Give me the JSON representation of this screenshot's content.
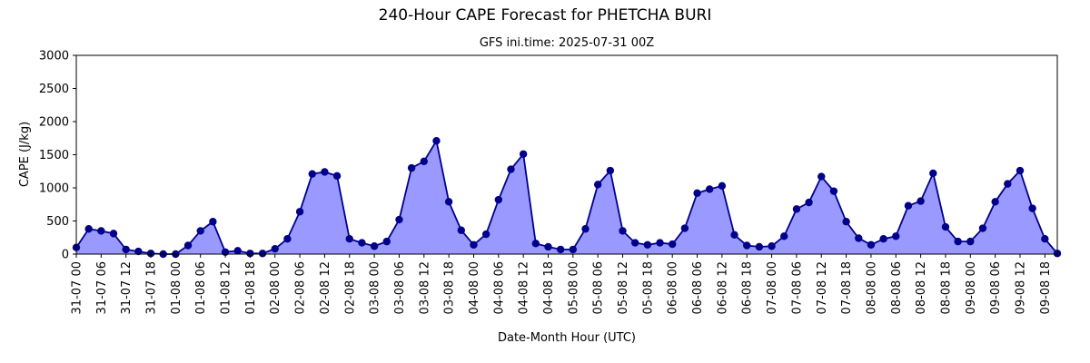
{
  "chart_data": {
    "type": "area",
    "title": "240-Hour CAPE Forecast for PHETCHA BURI",
    "subtitle": "GFS ini.time: 2025-07-31 00Z",
    "xlabel": "Date-Month Hour (UTC)",
    "ylabel": "CAPE (J/kg)",
    "ylim": [
      0,
      3000
    ],
    "yticks": [
      0,
      500,
      1000,
      1500,
      2000,
      2500,
      3000
    ],
    "x_step_hours": 3,
    "xticks": [
      "31-07 00",
      "31-07 06",
      "31-07 12",
      "31-07 18",
      "01-08 00",
      "01-08 06",
      "01-08 12",
      "01-08 18",
      "02-08 00",
      "02-08 06",
      "02-08 12",
      "02-08 18",
      "03-08 00",
      "03-08 06",
      "03-08 12",
      "03-08 18",
      "04-08 00",
      "04-08 06",
      "04-08 12",
      "04-08 18",
      "05-08 00",
      "05-08 06",
      "05-08 12",
      "05-08 18",
      "06-08 00",
      "06-08 06",
      "06-08 12",
      "06-08 18",
      "07-08 00",
      "07-08 06",
      "07-08 12",
      "07-08 18",
      "08-08 00",
      "08-08 06",
      "08-08 12",
      "08-08 18",
      "09-08 00",
      "09-08 06",
      "09-08 12",
      "09-08 18"
    ],
    "grid": false,
    "colors": {
      "line": "#00008b",
      "fill": "#9999ff",
      "marker": "#00008b"
    },
    "series": [
      {
        "values": [
          100,
          380,
          350,
          310,
          70,
          40,
          10,
          0,
          0,
          130,
          350,
          490,
          30,
          50,
          10,
          10,
          80,
          230,
          640,
          1210,
          1240,
          1180,
          230,
          170,
          120,
          190,
          520,
          1300,
          1400,
          1710,
          790,
          360,
          140,
          300,
          820,
          1280,
          1510,
          160,
          110,
          70,
          70,
          380,
          1050,
          1260,
          350,
          170,
          140,
          170,
          150,
          390,
          920,
          980,
          1030,
          290,
          130,
          110,
          120,
          270,
          680,
          780,
          1170,
          950,
          490,
          240,
          140,
          230,
          270,
          730,
          800,
          1220,
          410,
          190,
          190,
          390,
          790,
          1060,
          1260,
          690,
          230,
          10
        ]
      }
    ]
  }
}
